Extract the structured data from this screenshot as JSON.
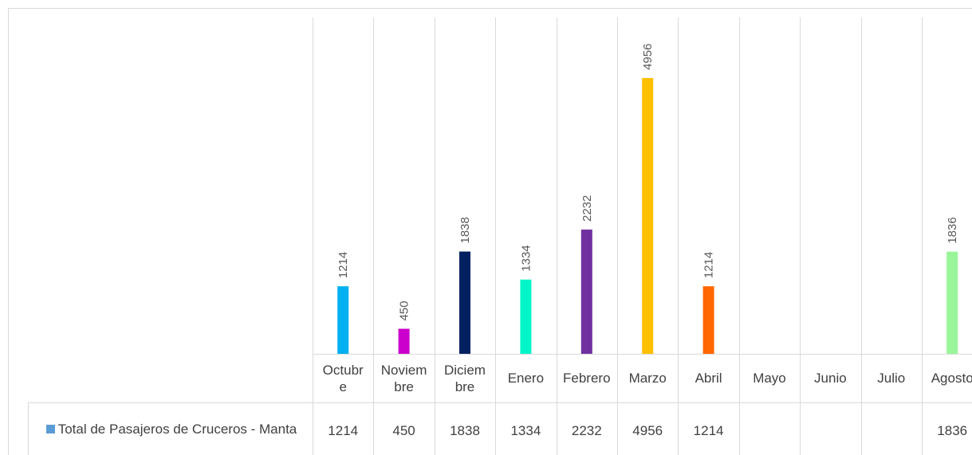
{
  "chart_data": {
    "type": "bar",
    "categories": [
      "Octubre",
      "Noviembre",
      "Diciembre",
      "Enero",
      "Febrero",
      "Marzo",
      "Abril",
      "Mayo",
      "Junio",
      "Julio",
      "Agosto"
    ],
    "series": [
      {
        "name": "Total de Pasajeros de Cruceros - Manta",
        "color": "#5b9bd5",
        "colors": [
          "#00b0f0",
          "#cc00cc",
          "#002060",
          "#00f5c8",
          "#7030a0",
          "#ffc000",
          "#ff6600",
          null,
          null,
          null,
          "#99f599"
        ],
        "values": [
          1214,
          450,
          1838,
          1334,
          2232,
          4956,
          1214,
          null,
          null,
          null,
          1836
        ]
      }
    ],
    "ylim": [
      0,
      6000
    ],
    "data_table": true
  }
}
